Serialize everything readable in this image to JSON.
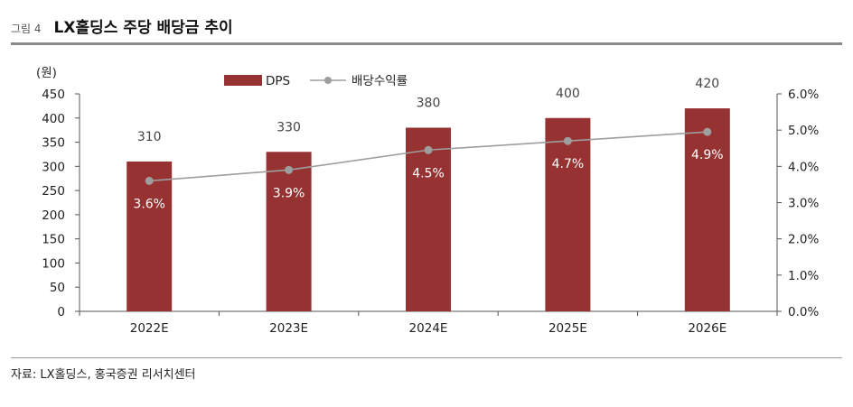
{
  "header": {
    "figure_label": "그림 4",
    "title": "LX홀딩스 주당 배당금 추이"
  },
  "source": "자료: LX홀딩스, 홍국증권 리서치센터",
  "colors": {
    "bar": "#963232",
    "line": "#9e9e9e",
    "axis": "#555555"
  },
  "chart_data": {
    "type": "bar",
    "title": "LX홀딩스 주당 배당금 추이",
    "categories": [
      "2022E",
      "2023E",
      "2024E",
      "2025E",
      "2026E"
    ],
    "y_unit_label": "(원)",
    "ylim": [
      0,
      450
    ],
    "yticks": [
      0,
      50,
      100,
      150,
      200,
      250,
      300,
      350,
      400,
      450
    ],
    "y2lim": [
      0,
      6.0
    ],
    "y2ticks": [
      "0.0%",
      "1.0%",
      "2.0%",
      "3.0%",
      "4.0%",
      "5.0%",
      "6.0%"
    ],
    "y2tick_values": [
      0,
      1,
      2,
      3,
      4,
      5,
      6
    ],
    "series": [
      {
        "name": "DPS",
        "type": "bar",
        "axis": "left",
        "values": [
          310,
          330,
          380,
          400,
          420
        ],
        "labels": [
          "310",
          "330",
          "380",
          "400",
          "420"
        ]
      },
      {
        "name": "배당수익률",
        "type": "line",
        "axis": "right",
        "values": [
          3.6,
          3.9,
          4.45,
          4.7,
          4.95
        ],
        "labels": [
          "3.6%",
          "3.9%",
          "4.5%",
          "4.7%",
          "4.9%"
        ]
      }
    ],
    "legend_position": "top-center"
  }
}
